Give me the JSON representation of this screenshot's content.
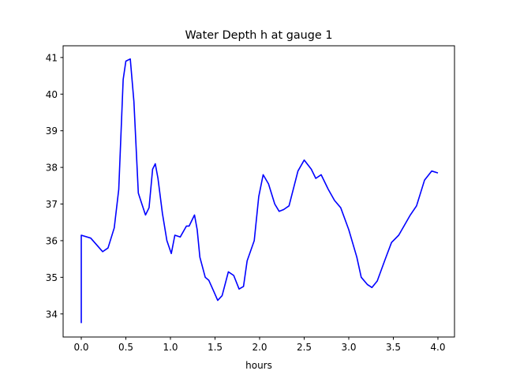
{
  "chart_data": {
    "type": "line",
    "title": "Water Depth h at gauge 1",
    "xlabel": "hours",
    "ylabel": "",
    "xlim": [
      -0.2035,
      4.186
    ],
    "ylim": [
      33.37,
      41.32
    ],
    "xticks": [
      0.0,
      0.5,
      1.0,
      1.5,
      2.0,
      2.5,
      3.0,
      3.5,
      4.0
    ],
    "xtick_labels": [
      "0.0",
      "0.5",
      "1.0",
      "1.5",
      "2.0",
      "2.5",
      "3.0",
      "3.5",
      "4.0"
    ],
    "yticks": [
      34,
      35,
      36,
      37,
      38,
      39,
      40,
      41
    ],
    "ytick_labels": [
      "34",
      "35",
      "36",
      "37",
      "38",
      "39",
      "40",
      "41"
    ],
    "grid": false,
    "series": [
      {
        "name": "h",
        "color": "#0000ff",
        "x": [
          0,
          0,
          0.106,
          0.24,
          0.3,
          0.37,
          0.42,
          0.47,
          0.5,
          0.55,
          0.59,
          0.64,
          0.68,
          0.72,
          0.76,
          0.8,
          0.83,
          0.86,
          0.91,
          0.96,
          1.01,
          1.05,
          1.11,
          1.18,
          1.21,
          1.27,
          1.3,
          1.33,
          1.39,
          1.43,
          1.48,
          1.53,
          1.58,
          1.65,
          1.71,
          1.77,
          1.82,
          1.86,
          1.94,
          1.99,
          2.04,
          2.1,
          2.17,
          2.22,
          2.27,
          2.33,
          2.43,
          2.5,
          2.58,
          2.63,
          2.69,
          2.77,
          2.84,
          2.91,
          3.0,
          3.09,
          3.14,
          3.21,
          3.26,
          3.32,
          3.41,
          3.48,
          3.56,
          3.62,
          3.69,
          3.76,
          3.85,
          3.93,
          4.0
        ],
        "y": [
          33.75,
          36.15,
          36.07,
          35.7,
          35.8,
          36.35,
          37.4,
          40.4,
          40.9,
          40.96,
          39.8,
          37.3,
          37.0,
          36.7,
          36.9,
          37.95,
          38.1,
          37.7,
          36.75,
          36.0,
          35.65,
          36.15,
          36.1,
          36.4,
          36.4,
          36.7,
          36.3,
          35.55,
          35.0,
          34.92,
          34.65,
          34.37,
          34.5,
          35.15,
          35.05,
          34.68,
          34.75,
          35.45,
          36.0,
          37.2,
          37.8,
          37.55,
          37.0,
          36.8,
          36.85,
          36.95,
          37.9,
          38.2,
          37.95,
          37.7,
          37.8,
          37.4,
          37.1,
          36.9,
          36.3,
          35.55,
          35.0,
          34.8,
          34.72,
          34.9,
          35.5,
          35.95,
          36.15,
          36.4,
          36.7,
          36.95,
          37.65,
          37.9,
          37.85
        ]
      }
    ]
  }
}
